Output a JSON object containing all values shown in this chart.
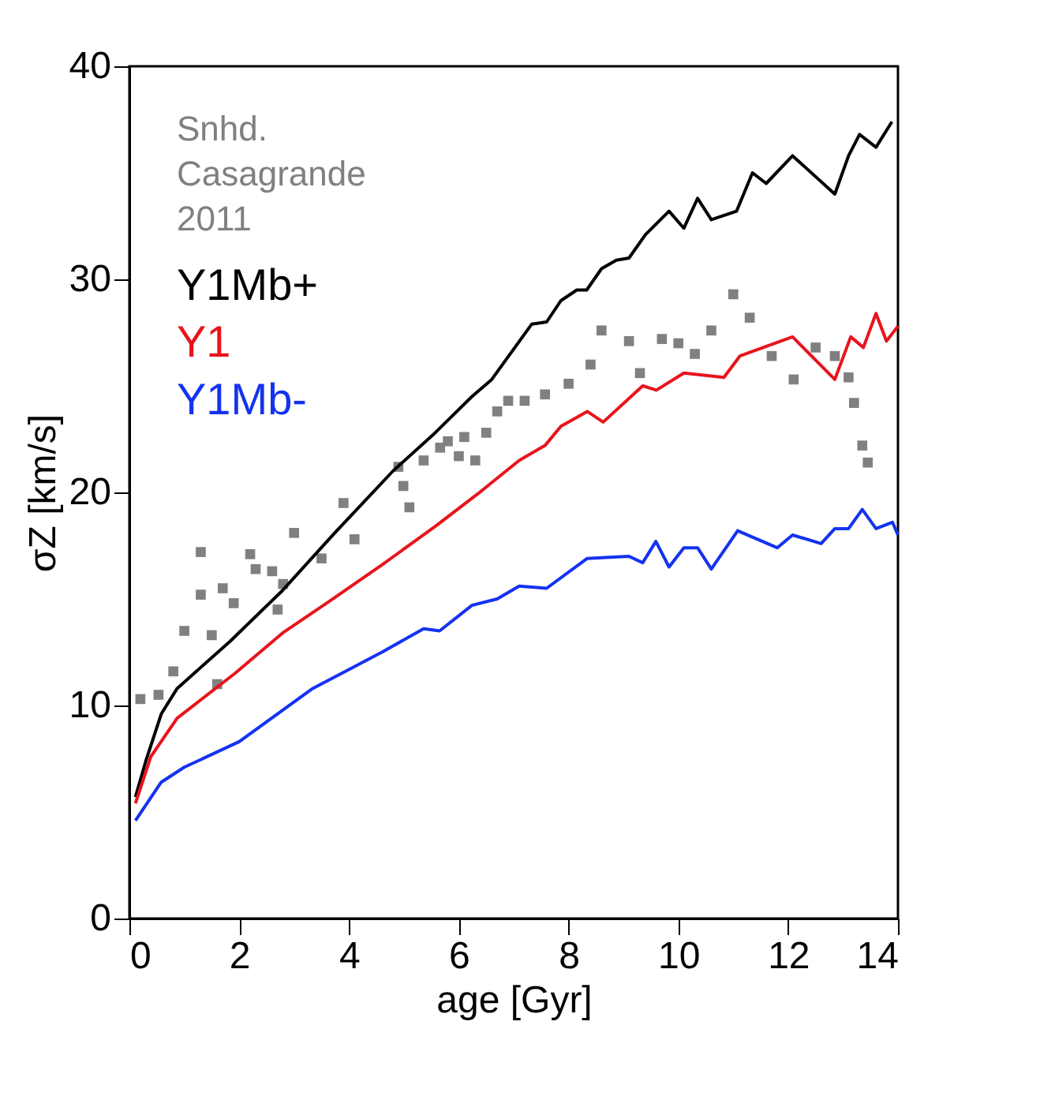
{
  "chart_data": {
    "type": "line",
    "xlabel": "age [Gyr]",
    "ylabel": "σZ [km/s]",
    "xlim": [
      0,
      14
    ],
    "ylim": [
      0,
      40
    ],
    "xticks": [
      0,
      2,
      4,
      6,
      8,
      10,
      12,
      14
    ],
    "yticks": [
      0,
      10,
      20,
      30,
      40
    ],
    "grid": false,
    "legend": "top left",
    "line_style": "solid",
    "series": [
      {
        "name": "Snhd.\nCasagrande\n2011",
        "type": "scatter",
        "marker": "square",
        "color": "#808080",
        "x": [
          0.2,
          0.53,
          0.8,
          1.0,
          1.3,
          1.3,
          1.5,
          1.6,
          1.7,
          1.9,
          2.2,
          2.3,
          2.6,
          2.7,
          2.8,
          3.0,
          3.5,
          3.9,
          4.1,
          4.9,
          4.99,
          5.1,
          5.36,
          5.66,
          5.8,
          6.0,
          6.1,
          6.3,
          6.5,
          6.7,
          6.9,
          7.2,
          7.57,
          8.0,
          8.4,
          8.6,
          9.1,
          9.3,
          9.7,
          10.0,
          10.3,
          10.6,
          11.0,
          11.3,
          11.7,
          12.1,
          12.5,
          12.85,
          13.1,
          13.2,
          13.35,
          13.45
        ],
        "values": [
          10.3,
          10.5,
          11.6,
          13.5,
          17.2,
          15.2,
          13.3,
          11.0,
          15.5,
          14.8,
          17.1,
          16.4,
          16.3,
          14.5,
          15.7,
          18.1,
          16.9,
          19.5,
          17.8,
          21.2,
          20.3,
          19.3,
          21.5,
          22.1,
          22.4,
          21.7,
          22.6,
          21.5,
          22.8,
          23.8,
          24.3,
          24.3,
          24.6,
          25.1,
          26.0,
          27.6,
          27.1,
          25.6,
          27.2,
          27.0,
          26.5,
          27.6,
          29.3,
          28.2,
          26.4,
          25.3,
          26.8,
          26.4,
          25.4,
          24.2,
          22.2,
          21.4
        ]
      },
      {
        "name": "Y1Mb+",
        "color": "#000000",
        "x": [
          0.11,
          0.3,
          0.58,
          0.87,
          1.83,
          2.79,
          3.74,
          4.8,
          5.57,
          6.24,
          6.6,
          7.33,
          7.6,
          7.86,
          8.15,
          8.33,
          8.6,
          8.87,
          9.1,
          9.4,
          9.83,
          10.1,
          10.35,
          10.6,
          11.06,
          11.35,
          11.6,
          12.08,
          12.85,
          13.1,
          13.3,
          13.6,
          13.89
        ],
        "values": [
          5.7,
          7.4,
          9.6,
          10.8,
          13.0,
          15.4,
          18.1,
          21.0,
          22.8,
          24.5,
          25.3,
          27.9,
          28.0,
          29.0,
          29.5,
          29.5,
          30.5,
          30.9,
          31.0,
          32.1,
          33.2,
          32.4,
          33.8,
          32.8,
          33.2,
          35.0,
          34.5,
          35.8,
          34.0,
          35.8,
          36.8,
          36.2,
          37.4
        ]
      },
      {
        "name": "Y1",
        "color": "#e8141c",
        "x": [
          0.11,
          0.39,
          0.87,
          1.92,
          2.79,
          3.65,
          4.6,
          5.57,
          6.33,
          7.1,
          7.57,
          7.86,
          8.34,
          8.63,
          9.35,
          9.6,
          10.1,
          10.83,
          11.12,
          12.08,
          12.85,
          13.14,
          13.37,
          13.6,
          13.79,
          14.0
        ],
        "values": [
          5.4,
          7.6,
          9.4,
          11.5,
          13.4,
          14.9,
          16.6,
          18.4,
          19.9,
          21.5,
          22.2,
          23.1,
          23.8,
          23.3,
          25.0,
          24.8,
          25.6,
          25.4,
          26.4,
          27.3,
          25.3,
          27.3,
          26.8,
          28.4,
          27.1,
          27.8
        ]
      },
      {
        "name": "Y1Mb-",
        "color": "#1432f0",
        "x": [
          0.11,
          0.58,
          1.0,
          2.0,
          3.34,
          4.6,
          5.36,
          5.65,
          6.24,
          6.7,
          7.1,
          7.6,
          8.34,
          9.1,
          9.35,
          9.59,
          9.83,
          10.1,
          10.35,
          10.6,
          11.08,
          11.8,
          12.08,
          12.6,
          12.85,
          13.1,
          13.35,
          13.6,
          13.9,
          14.0
        ],
        "values": [
          4.6,
          6.4,
          7.1,
          8.3,
          10.8,
          12.5,
          13.6,
          13.5,
          14.7,
          15.0,
          15.6,
          15.5,
          16.9,
          17.0,
          16.7,
          17.7,
          16.5,
          17.4,
          17.4,
          16.4,
          18.2,
          17.4,
          18.0,
          17.6,
          18.3,
          18.3,
          19.2,
          18.3,
          18.6,
          18.0
        ]
      }
    ]
  }
}
